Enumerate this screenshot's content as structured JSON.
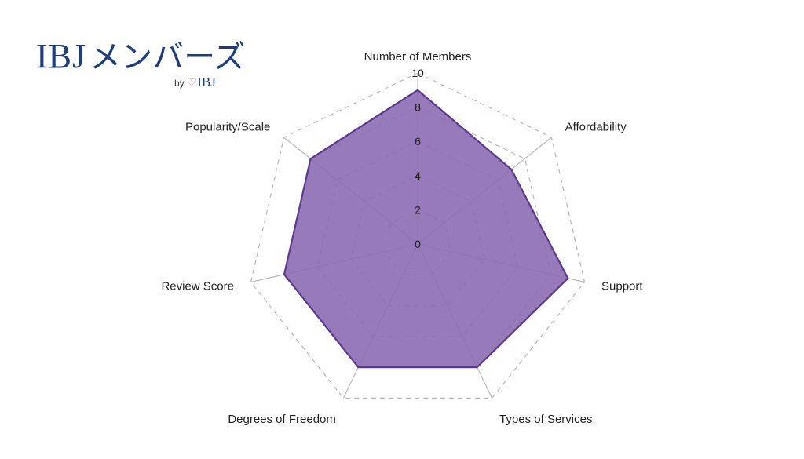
{
  "logo": {
    "brand": "IBJ",
    "kana": "メンバーズ",
    "by": "by",
    "heart_glyph": "♡",
    "sub_brand": "IBJ"
  },
  "chart_data": {
    "type": "radar",
    "title": "",
    "axes": [
      "Number of Members",
      "Affordability",
      "Support",
      "Types of Services",
      "Degrees of Freedom",
      "Review Score",
      "Popularity/Scale"
    ],
    "series": [
      {
        "values": [
          9,
          7,
          9,
          8,
          8,
          8,
          8
        ]
      }
    ],
    "range": [
      0,
      10
    ],
    "ticks": [
      0,
      2,
      4,
      6,
      8,
      10
    ],
    "grid": true,
    "colors": {
      "fill": "#8c6bb1",
      "stroke": "#5a3a8c",
      "grid": "#b8b8b8"
    }
  }
}
